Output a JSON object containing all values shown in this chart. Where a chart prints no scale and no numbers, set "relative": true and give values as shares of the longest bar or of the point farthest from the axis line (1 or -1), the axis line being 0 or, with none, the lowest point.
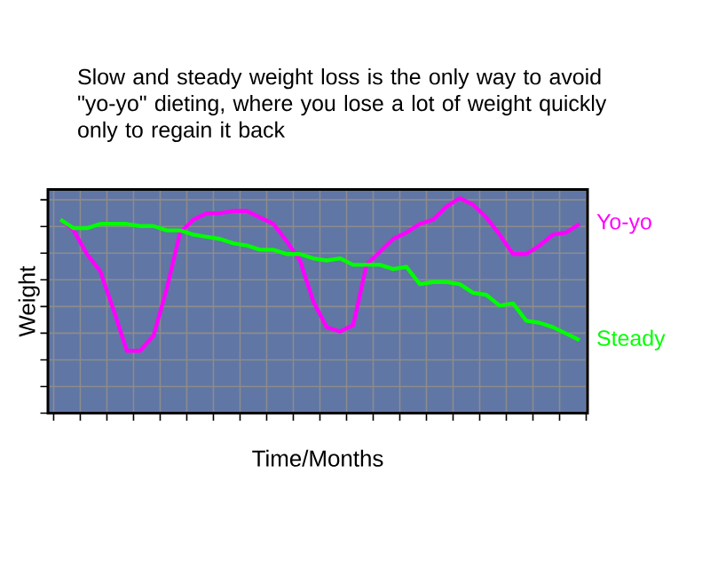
{
  "chart_data": {
    "type": "line",
    "relative": true,
    "grid": true,
    "title": "Slow and steady weight loss is the only way to avoid \"yo-yo\" dieting, where you lose a lot of weight quickly only to regain it back",
    "xlabel": "Time/Months",
    "ylabel": "Weight",
    "categories": [
      null,
      null,
      null,
      null,
      null,
      null,
      null,
      null,
      null,
      null,
      null,
      null,
      null,
      null,
      null,
      null,
      null,
      null,
      null,
      null,
      null,
      null,
      null,
      null,
      null,
      null,
      null,
      null,
      null,
      null,
      null,
      null,
      null,
      null,
      null,
      null,
      null,
      null,
      null,
      null
    ],
    "series": [
      {
        "name": "Yo-yo",
        "color": "#ff00ff",
        "values": [
          0.9,
          0.85,
          0.74,
          0.66,
          0.48,
          0.29,
          0.29,
          0.36,
          0.58,
          0.84,
          0.9,
          0.93,
          0.93,
          0.94,
          0.94,
          0.91,
          0.88,
          0.8,
          0.71,
          0.52,
          0.4,
          0.38,
          0.41,
          0.69,
          0.75,
          0.81,
          0.84,
          0.88,
          0.9,
          0.96,
          1,
          0.97,
          0.91,
          0.83,
          0.74,
          0.74,
          0.78,
          0.83,
          0.84,
          0.88
        ]
      },
      {
        "name": "Steady",
        "color": "#00ff00",
        "values": [
          0.9,
          0.86,
          0.86,
          0.88,
          0.88,
          0.88,
          0.87,
          0.87,
          0.85,
          0.85,
          0.83,
          0.82,
          0.81,
          0.79,
          0.78,
          0.76,
          0.76,
          0.74,
          0.74,
          0.72,
          0.71,
          0.72,
          0.69,
          0.69,
          0.69,
          0.67,
          0.68,
          0.6,
          0.61,
          0.61,
          0.6,
          0.56,
          0.55,
          0.5,
          0.51,
          0.43,
          0.42,
          0.4,
          0.37,
          0.34
        ]
      }
    ]
  }
}
